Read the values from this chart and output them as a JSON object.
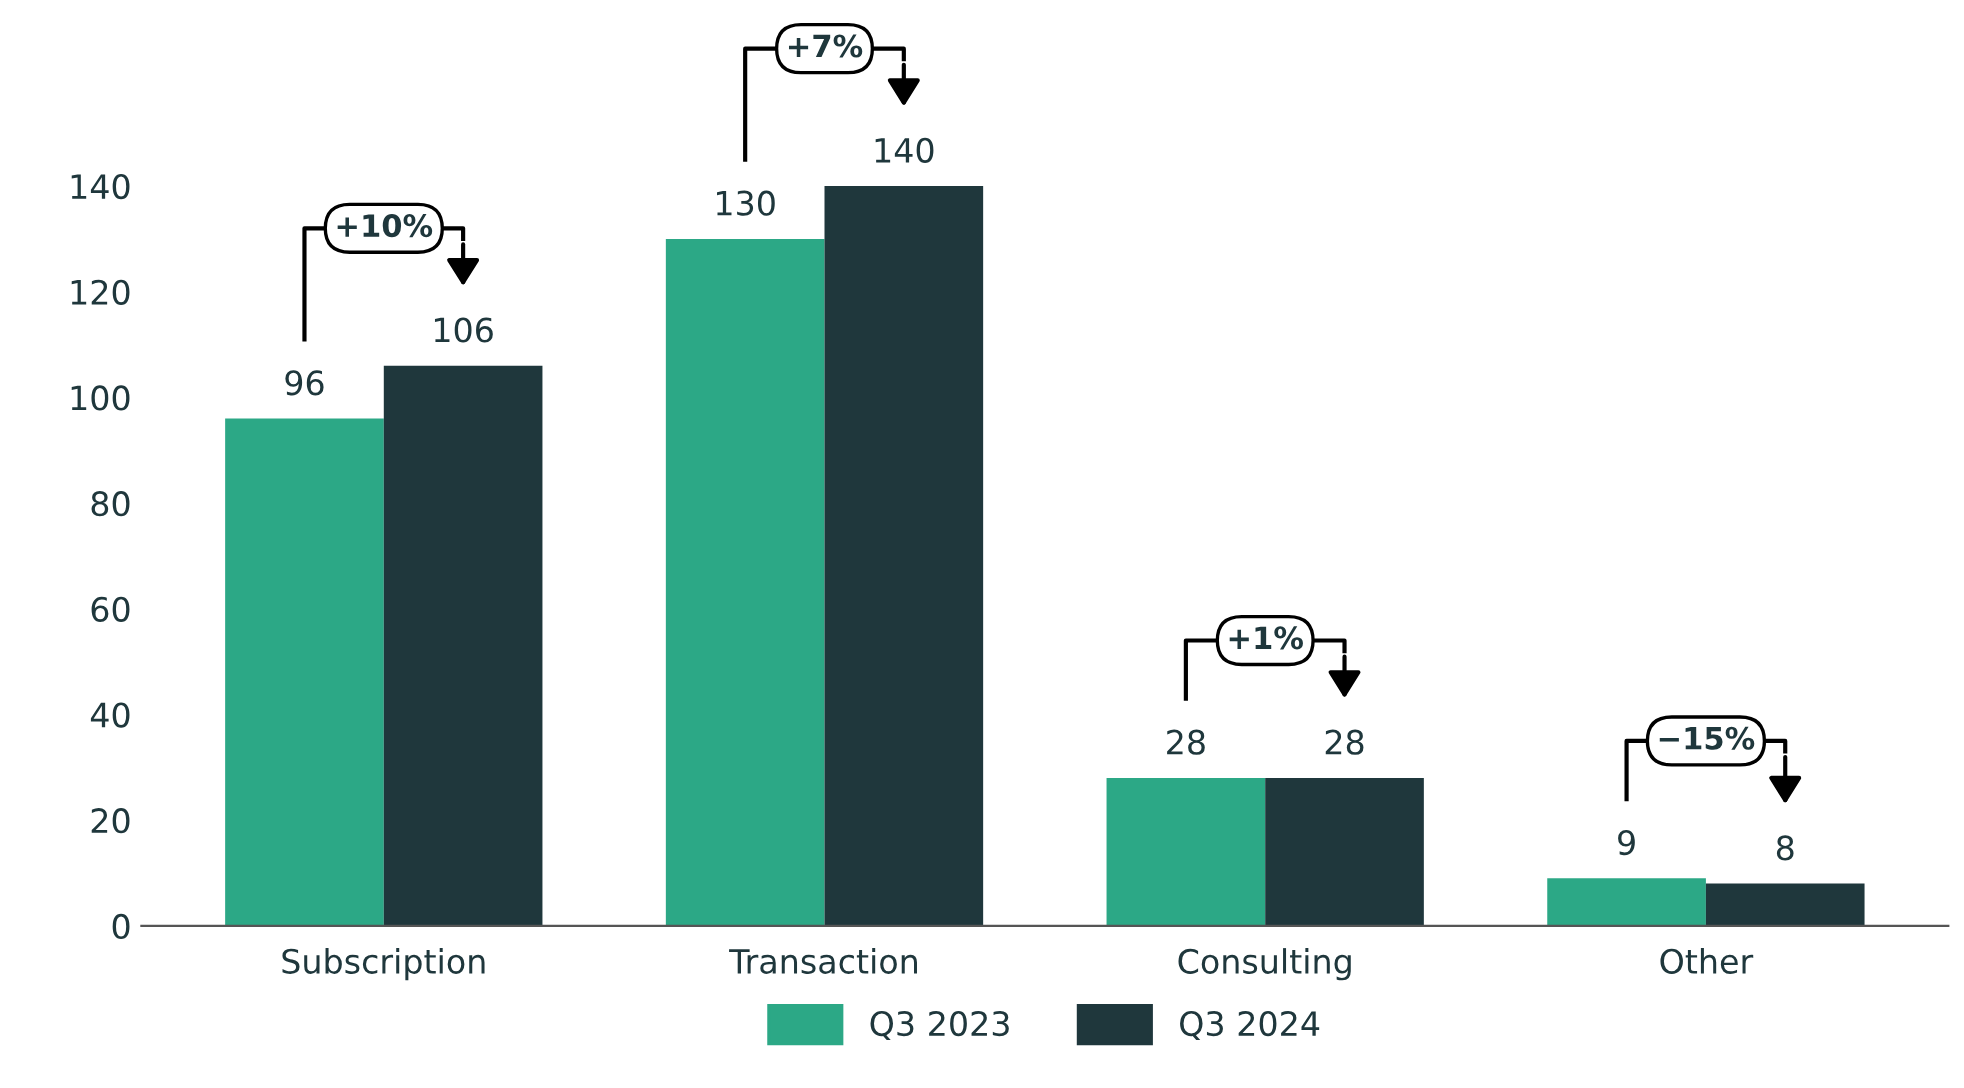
{
  "chart_data": {
    "type": "bar",
    "categories": [
      "Subscription",
      "Transaction",
      "Consulting",
      "Other"
    ],
    "series": [
      {
        "name": "Q3 2023",
        "color": "#2ca886",
        "values": [
          96,
          130,
          28,
          9
        ]
      },
      {
        "name": "Q3 2024",
        "color": "#1f373c",
        "values": [
          106,
          140,
          28,
          8
        ]
      }
    ],
    "ylim": [
      0,
      140
    ],
    "yticks": [
      0,
      20,
      40,
      60,
      80,
      100,
      120,
      140
    ],
    "grid": false,
    "legend": "bottom",
    "data_labels": true,
    "annotations": [
      "+10%",
      "+7%",
      "+1%",
      "−15%"
    ]
  }
}
